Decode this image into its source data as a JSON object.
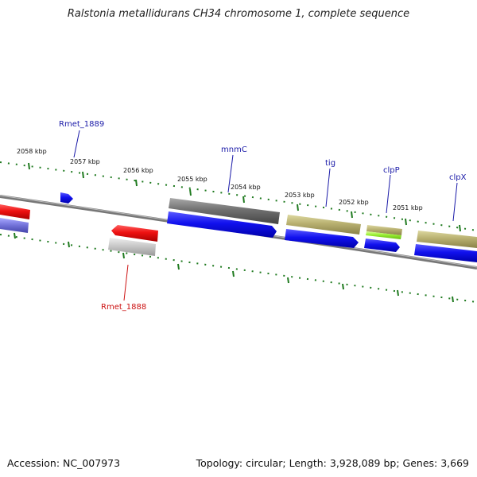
{
  "title": "Ralstonia metallidurans CH34 chromosome 1, complete sequence",
  "footer": {
    "accession": "Accession: NC_007973",
    "summary": "Topology: circular; Length: 3,928,089 bp; Genes: 3,669"
  },
  "colors": {
    "backbone": "#888888",
    "tick": "#1f7a1f",
    "gene_red": "#dd1111",
    "gene_blue": "#1a1ae6",
    "gene_gray": "#777777",
    "gene_khaki": "#b8b070",
    "gene_lightblue": "#7777dd",
    "gene_lightgray": "#c4c4c4",
    "gene_green": "#99ee33",
    "label_blue": "#1a1aa8",
    "label_red": "#cc1111"
  },
  "kbp_labels": [
    "2058 kbp",
    "2057 kbp",
    "2056 kbp",
    "2055 kbp",
    "2054 kbp",
    "2053 kbp",
    "2052 kbp",
    "2051 kbp"
  ],
  "gene_labels": [
    {
      "name": "Rmet_1889",
      "color": "label_blue"
    },
    {
      "name": "mnmC",
      "color": "label_blue"
    },
    {
      "name": "tig",
      "color": "label_blue"
    },
    {
      "name": "clpP",
      "color": "label_blue"
    },
    {
      "name": "clpX",
      "color": "label_blue"
    },
    {
      "name": "Rmet_1888",
      "color": "label_red"
    }
  ]
}
